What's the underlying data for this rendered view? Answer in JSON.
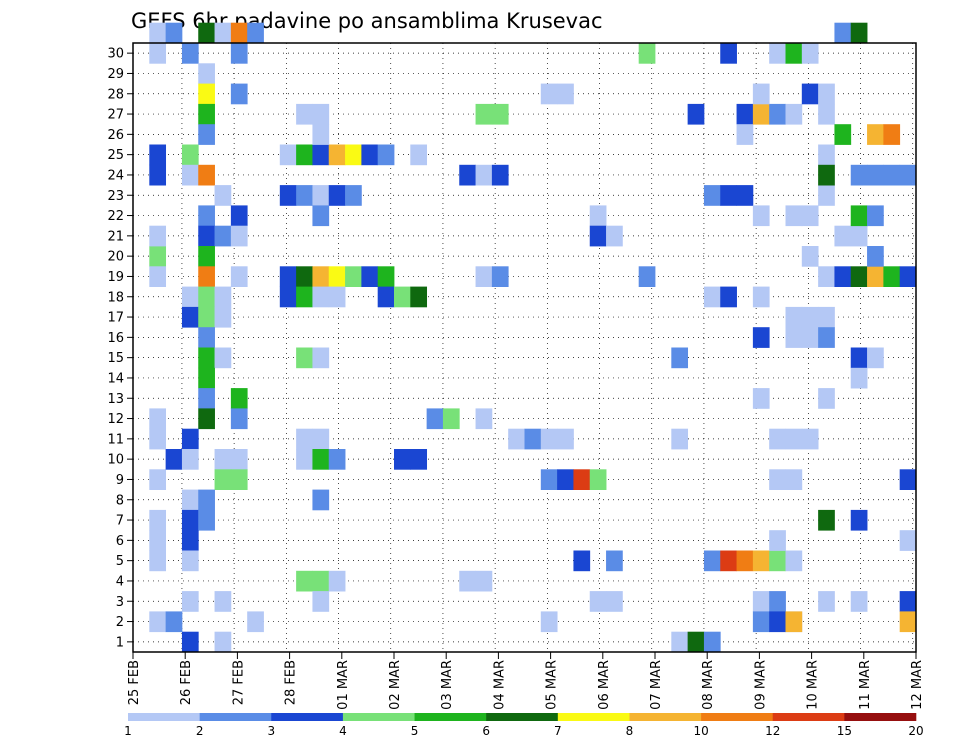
{
  "chart_data": {
    "type": "heatmap",
    "title": "GEFS 6hr padavine po ansamblima Krusevac",
    "xlabel": "",
    "ylabel": "",
    "y_range": [
      1,
      30
    ],
    "y_ticks": [
      "1",
      "2",
      "3",
      "4",
      "5",
      "6",
      "7",
      "8",
      "9",
      "10",
      "11",
      "12",
      "13",
      "14",
      "15",
      "16",
      "17",
      "18",
      "19",
      "20",
      "21",
      "22",
      "23",
      "24",
      "25",
      "26",
      "27",
      "28",
      "29",
      "30"
    ],
    "x_ticks": [
      "25 FEB",
      "26 FEB",
      "27 FEB",
      "28 FEB",
      "01 MAR",
      "02 MAR",
      "03 MAR",
      "04 MAR",
      "05 MAR",
      "06 MAR",
      "07 MAR",
      "08 MAR",
      "09 MAR",
      "10 MAR",
      "11 MAR",
      "12 MAR"
    ],
    "grid": true,
    "colorbar": {
      "placement": "bottom",
      "labels": [
        "1",
        "2",
        "3",
        "4",
        "5",
        "6",
        "7",
        "8",
        "10",
        "12",
        "15",
        "20"
      ],
      "colors": [
        "#b4c8f5",
        "#5a8ce6",
        "#1a46d2",
        "#78e178",
        "#1eb41e",
        "#0f690f",
        "#fafa14",
        "#f5b432",
        "#f07d14",
        "#dc3c14",
        "#960f0f"
      ]
    },
    "cells": [
      [
        1,
        30,
        1
      ],
      [
        2,
        30,
        2
      ],
      [
        1,
        29,
        1
      ],
      [
        1,
        24,
        3
      ],
      [
        1,
        23,
        3
      ],
      [
        1,
        19,
        4
      ],
      [
        1,
        11,
        1
      ],
      [
        1,
        8,
        1
      ],
      [
        1,
        6,
        1
      ],
      [
        1,
        1,
        1
      ],
      [
        2,
        1,
        2
      ],
      [
        1,
        10,
        1
      ],
      [
        2,
        9,
        3
      ],
      [
        1,
        4,
        1
      ],
      [
        1,
        5,
        1
      ],
      [
        1,
        20,
        1
      ],
      [
        1,
        18,
        1
      ],
      [
        4,
        30,
        6
      ],
      [
        5,
        30,
        1
      ],
      [
        6,
        30,
        9
      ],
      [
        7,
        30,
        2
      ],
      [
        3,
        29,
        2
      ],
      [
        6,
        29,
        2
      ],
      [
        4,
        28,
        1
      ],
      [
        4,
        27,
        7
      ],
      [
        6,
        27,
        2
      ],
      [
        4,
        26,
        5
      ],
      [
        4,
        25,
        2
      ],
      [
        3,
        24,
        4
      ],
      [
        3,
        23,
        1
      ],
      [
        4,
        23,
        9
      ],
      [
        5,
        22,
        1
      ],
      [
        4,
        21,
        2
      ],
      [
        6,
        21,
        3
      ],
      [
        4,
        20,
        3
      ],
      [
        5,
        20,
        2
      ],
      [
        6,
        20,
        1
      ],
      [
        4,
        19,
        5
      ],
      [
        4,
        18,
        9
      ],
      [
        6,
        18,
        1
      ],
      [
        3,
        17,
        1
      ],
      [
        4,
        17,
        4
      ],
      [
        5,
        17,
        1
      ],
      [
        3,
        16,
        3
      ],
      [
        4,
        16,
        4
      ],
      [
        5,
        16,
        1
      ],
      [
        4,
        15,
        2
      ],
      [
        4,
        14,
        5
      ],
      [
        5,
        14,
        1
      ],
      [
        4,
        13,
        5
      ],
      [
        4,
        12,
        2
      ],
      [
        6,
        12,
        5
      ],
      [
        4,
        11,
        6
      ],
      [
        6,
        11,
        2
      ],
      [
        3,
        10,
        3
      ],
      [
        3,
        9,
        1
      ],
      [
        5,
        9,
        1
      ],
      [
        6,
        9,
        1
      ],
      [
        5,
        8,
        4
      ],
      [
        6,
        8,
        4
      ],
      [
        3,
        7,
        1
      ],
      [
        4,
        7,
        2
      ],
      [
        3,
        6,
        3
      ],
      [
        4,
        6,
        2
      ],
      [
        3,
        5,
        3
      ],
      [
        3,
        4,
        1
      ],
      [
        3,
        2,
        1
      ],
      [
        5,
        2,
        1
      ],
      [
        7,
        1,
        1
      ],
      [
        3,
        0,
        3
      ],
      [
        5,
        0,
        1
      ],
      [
        9,
        24,
        1
      ],
      [
        10,
        24,
        5
      ],
      [
        11,
        24,
        3
      ],
      [
        12,
        24,
        8
      ],
      [
        13,
        24,
        7
      ],
      [
        14,
        24,
        3
      ],
      [
        15,
        24,
        2
      ],
      [
        10,
        26,
        1
      ],
      [
        11,
        26,
        1
      ],
      [
        11,
        25,
        1
      ],
      [
        9,
        22,
        3
      ],
      [
        10,
        22,
        2
      ],
      [
        11,
        22,
        1
      ],
      [
        12,
        22,
        3
      ],
      [
        13,
        22,
        2
      ],
      [
        11,
        21,
        2
      ],
      [
        9,
        18,
        3
      ],
      [
        10,
        18,
        6
      ],
      [
        11,
        18,
        8
      ],
      [
        12,
        18,
        7
      ],
      [
        13,
        18,
        4
      ],
      [
        14,
        18,
        3
      ],
      [
        15,
        18,
        5
      ],
      [
        9,
        17,
        3
      ],
      [
        10,
        17,
        5
      ],
      [
        11,
        17,
        1
      ],
      [
        12,
        17,
        1
      ],
      [
        15,
        17,
        3
      ],
      [
        16,
        17,
        4
      ],
      [
        17,
        17,
        6
      ],
      [
        10,
        14,
        4
      ],
      [
        11,
        14,
        1
      ],
      [
        10,
        10,
        1
      ],
      [
        11,
        10,
        1
      ],
      [
        10,
        9,
        1
      ],
      [
        11,
        9,
        5
      ],
      [
        12,
        9,
        2
      ],
      [
        16,
        9,
        3
      ],
      [
        17,
        9,
        3
      ],
      [
        11,
        7,
        2
      ],
      [
        10,
        3,
        4
      ],
      [
        11,
        3,
        4
      ],
      [
        12,
        3,
        1
      ],
      [
        11,
        2,
        1
      ],
      [
        17,
        24,
        1
      ],
      [
        18,
        11,
        2
      ],
      [
        19,
        11,
        4
      ],
      [
        20,
        3,
        1
      ],
      [
        21,
        3,
        1
      ],
      [
        21,
        11,
        1
      ],
      [
        20,
        23,
        3
      ],
      [
        21,
        23,
        1
      ],
      [
        22,
        23,
        3
      ],
      [
        21,
        26,
        4
      ],
      [
        22,
        26,
        4
      ],
      [
        21,
        18,
        1
      ],
      [
        22,
        18,
        2
      ],
      [
        23,
        10,
        1
      ],
      [
        24,
        10,
        2
      ],
      [
        25,
        10,
        1
      ],
      [
        26,
        10,
        1
      ],
      [
        25,
        1,
        1
      ],
      [
        25,
        8,
        2
      ],
      [
        26,
        8,
        3
      ],
      [
        27,
        8,
        10
      ],
      [
        28,
        8,
        4
      ],
      [
        25,
        27,
        1
      ],
      [
        26,
        27,
        1
      ],
      [
        27,
        4,
        3
      ],
      [
        28,
        21,
        1
      ],
      [
        28,
        20,
        3
      ],
      [
        29,
        20,
        1
      ],
      [
        28,
        2,
        1
      ],
      [
        29,
        2,
        1
      ],
      [
        29,
        4,
        2
      ],
      [
        31,
        18,
        2
      ],
      [
        31,
        29,
        4
      ],
      [
        33,
        0,
        1
      ],
      [
        34,
        0,
        6
      ],
      [
        35,
        0,
        2
      ],
      [
        33,
        10,
        1
      ],
      [
        33,
        14,
        2
      ],
      [
        34,
        26,
        3
      ],
      [
        35,
        22,
        2
      ],
      [
        36,
        22,
        3
      ],
      [
        37,
        22,
        3
      ],
      [
        36,
        29,
        3
      ],
      [
        35,
        17,
        1
      ],
      [
        36,
        17,
        3
      ],
      [
        35,
        4,
        2
      ],
      [
        36,
        4,
        10
      ],
      [
        37,
        4,
        9
      ],
      [
        38,
        4,
        8
      ],
      [
        39,
        4,
        4
      ],
      [
        40,
        4,
        1
      ],
      [
        37,
        26,
        3
      ],
      [
        37,
        25,
        1
      ],
      [
        38,
        26,
        8
      ],
      [
        39,
        26,
        2
      ],
      [
        40,
        26,
        1
      ],
      [
        39,
        8,
        1
      ],
      [
        40,
        8,
        1
      ],
      [
        38,
        2,
        1
      ],
      [
        39,
        2,
        2
      ],
      [
        38,
        1,
        2
      ],
      [
        39,
        1,
        3
      ],
      [
        40,
        1,
        1
      ],
      [
        40,
        1,
        8
      ],
      [
        38,
        15,
        3
      ],
      [
        38,
        12,
        1
      ],
      [
        38,
        21,
        1
      ],
      [
        40,
        21,
        1
      ],
      [
        41,
        21,
        1
      ],
      [
        39,
        10,
        1
      ],
      [
        40,
        10,
        1
      ],
      [
        41,
        10,
        1
      ],
      [
        39,
        5,
        1
      ],
      [
        38,
        27,
        1
      ],
      [
        39,
        29,
        1
      ],
      [
        40,
        29,
        5
      ],
      [
        41,
        29,
        1
      ],
      [
        41,
        27,
        3
      ],
      [
        40,
        16,
        1
      ],
      [
        41,
        16,
        1
      ],
      [
        42,
        16,
        1
      ],
      [
        40,
        15,
        1
      ],
      [
        41,
        15,
        1
      ],
      [
        42,
        15,
        2
      ],
      [
        41,
        19,
        1
      ],
      [
        42,
        18,
        1
      ],
      [
        42,
        26,
        1
      ],
      [
        42,
        27,
        1
      ],
      [
        42,
        24,
        1
      ],
      [
        42,
        22,
        1
      ],
      [
        42,
        12,
        1
      ],
      [
        42,
        6,
        6
      ],
      [
        42,
        23,
        6
      ],
      [
        43,
        25,
        5
      ],
      [
        43,
        30,
        2
      ],
      [
        44,
        30,
        6
      ],
      [
        43,
        20,
        1
      ],
      [
        44,
        20,
        1
      ],
      [
        43,
        18,
        3
      ],
      [
        44,
        18,
        6
      ],
      [
        45,
        18,
        8
      ],
      [
        46,
        18,
        5
      ],
      [
        47,
        18,
        3
      ],
      [
        44,
        23,
        2
      ],
      [
        45,
        23,
        2
      ],
      [
        46,
        23,
        2
      ],
      [
        47,
        23,
        2
      ],
      [
        44,
        21,
        5
      ],
      [
        45,
        21,
        2
      ],
      [
        45,
        25,
        8
      ],
      [
        46,
        25,
        9
      ],
      [
        44,
        14,
        3
      ],
      [
        45,
        14,
        1
      ],
      [
        44,
        6,
        3
      ],
      [
        44,
        13,
        1
      ],
      [
        45,
        19,
        2
      ],
      [
        47,
        8,
        3
      ],
      [
        47,
        5,
        1
      ],
      [
        47,
        2,
        3
      ],
      [
        47,
        1,
        8
      ],
      [
        44,
        2,
        1
      ],
      [
        42,
        2,
        1
      ],
      [
        38,
        17,
        1
      ]
    ]
  }
}
